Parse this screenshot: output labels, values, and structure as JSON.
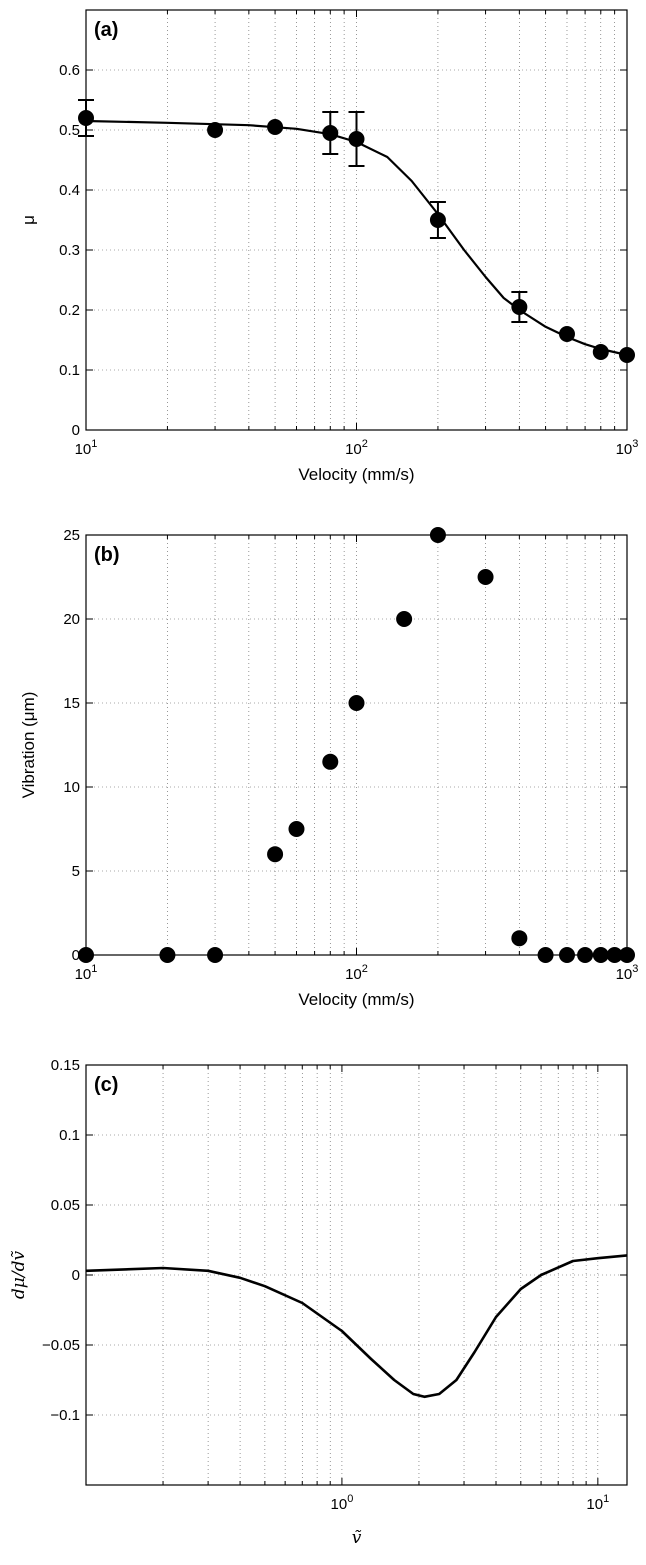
{
  "chart_data": [
    {
      "type": "scatter",
      "panel_label": "(a)",
      "xlabel": "Velocity (mm/s)",
      "ylabel": "μ",
      "xscale": "log",
      "xlim": [
        10,
        1000
      ],
      "ylim": [
        0,
        0.7
      ],
      "xticks": [
        {
          "base": "10",
          "exp": "1"
        },
        {
          "base": "10",
          "exp": "2"
        },
        {
          "base": "10",
          "exp": "3"
        }
      ],
      "yticks": [
        "0",
        "0.1",
        "0.2",
        "0.3",
        "0.4",
        "0.5",
        "0.6"
      ],
      "grid": true,
      "marker_color": "#000000",
      "points": [
        {
          "x": 10,
          "y": 0.52,
          "err": 0.03
        },
        {
          "x": 30,
          "y": 0.5
        },
        {
          "x": 50,
          "y": 0.505
        },
        {
          "x": 80,
          "y": 0.495,
          "err": 0.035
        },
        {
          "x": 100,
          "y": 0.485,
          "err": 0.045
        },
        {
          "x": 200,
          "y": 0.35,
          "err": 0.03
        },
        {
          "x": 400,
          "y": 0.205,
          "err": 0.025
        },
        {
          "x": 600,
          "y": 0.16
        },
        {
          "x": 800,
          "y": 0.13
        },
        {
          "x": 1000,
          "y": 0.125
        }
      ],
      "fit_curve": [
        [
          10,
          0.515
        ],
        [
          20,
          0.512
        ],
        [
          40,
          0.508
        ],
        [
          60,
          0.502
        ],
        [
          80,
          0.493
        ],
        [
          100,
          0.48
        ],
        [
          130,
          0.455
        ],
        [
          160,
          0.415
        ],
        [
          200,
          0.36
        ],
        [
          250,
          0.3
        ],
        [
          300,
          0.255
        ],
        [
          350,
          0.22
        ],
        [
          400,
          0.2
        ],
        [
          500,
          0.172
        ],
        [
          600,
          0.155
        ],
        [
          700,
          0.143
        ],
        [
          800,
          0.135
        ],
        [
          1000,
          0.125
        ]
      ]
    },
    {
      "type": "scatter",
      "panel_label": "(b)",
      "xlabel": "Velocity (mm/s)",
      "ylabel": "Vibration (μm)",
      "xscale": "log",
      "xlim": [
        10,
        1000
      ],
      "ylim": [
        0,
        25
      ],
      "xticks": [
        {
          "base": "10",
          "exp": "1"
        },
        {
          "base": "10",
          "exp": "2"
        },
        {
          "base": "10",
          "exp": "3"
        }
      ],
      "yticks": [
        "0",
        "5",
        "10",
        "15",
        "20",
        "25"
      ],
      "grid": true,
      "marker_color": "#000000",
      "points": [
        {
          "x": 10,
          "y": 0
        },
        {
          "x": 20,
          "y": 0
        },
        {
          "x": 30,
          "y": 0
        },
        {
          "x": 50,
          "y": 6
        },
        {
          "x": 60,
          "y": 7.5
        },
        {
          "x": 80,
          "y": 11.5
        },
        {
          "x": 100,
          "y": 15
        },
        {
          "x": 150,
          "y": 20
        },
        {
          "x": 200,
          "y": 25
        },
        {
          "x": 300,
          "y": 22.5
        },
        {
          "x": 400,
          "y": 1
        },
        {
          "x": 500,
          "y": 0
        },
        {
          "x": 600,
          "y": 0
        },
        {
          "x": 700,
          "y": 0
        },
        {
          "x": 800,
          "y": 0
        },
        {
          "x": 900,
          "y": 0
        },
        {
          "x": 1000,
          "y": 0
        }
      ]
    },
    {
      "type": "line",
      "panel_label": "(c)",
      "xlabel": "ṽ",
      "ylabel": "dμ/dṽ",
      "xscale": "log",
      "xlim": [
        0.1,
        13
      ],
      "ylim": [
        -0.15,
        0.15
      ],
      "xticks": [
        {
          "base": "10",
          "exp": "0",
          "value": 1
        },
        {
          "base": "10",
          "exp": "1",
          "value": 10
        }
      ],
      "yticks": [
        "0.15",
        "0.1",
        "0.05",
        "0",
        "−0.05",
        "−0.1"
      ],
      "yticks_values": [
        0.15,
        0.1,
        0.05,
        0,
        -0.05,
        -0.1
      ],
      "grid": true,
      "line_color": "#000000",
      "curve": [
        [
          0.1,
          0.003
        ],
        [
          0.2,
          0.005
        ],
        [
          0.3,
          0.003
        ],
        [
          0.4,
          -0.002
        ],
        [
          0.5,
          -0.008
        ],
        [
          0.7,
          -0.02
        ],
        [
          1.0,
          -0.04
        ],
        [
          1.3,
          -0.06
        ],
        [
          1.6,
          -0.075
        ],
        [
          1.9,
          -0.085
        ],
        [
          2.1,
          -0.087
        ],
        [
          2.4,
          -0.085
        ],
        [
          2.8,
          -0.075
        ],
        [
          3.3,
          -0.055
        ],
        [
          4.0,
          -0.03
        ],
        [
          5.0,
          -0.01
        ],
        [
          6.0,
          0.0
        ],
        [
          8.0,
          0.01
        ],
        [
          10.0,
          0.012
        ],
        [
          13.0,
          0.014
        ]
      ]
    }
  ]
}
